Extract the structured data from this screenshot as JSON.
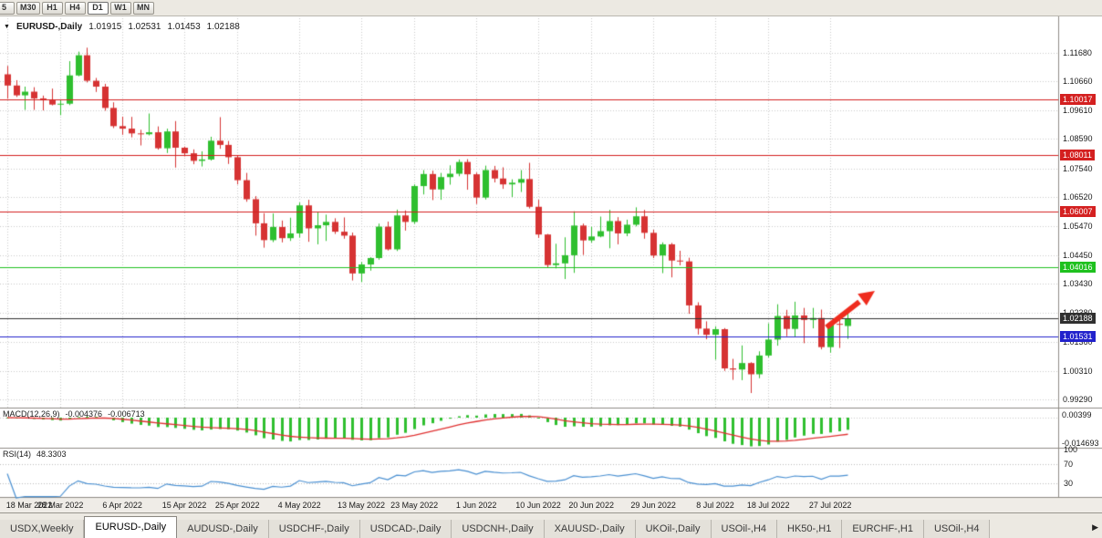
{
  "toolbar": {
    "timeframes": [
      {
        "label": "5",
        "active": false
      },
      {
        "label": "M30",
        "active": false
      },
      {
        "label": "H1",
        "active": false
      },
      {
        "label": "H4",
        "active": false
      },
      {
        "label": "D1",
        "active": true
      },
      {
        "label": "W1",
        "active": false
      },
      {
        "label": "MN",
        "active": false
      }
    ]
  },
  "header": {
    "dropdown": "▼",
    "symbol": "EURUSD-,Daily",
    "open": "1.01915",
    "high": "1.02531",
    "low": "1.01453",
    "close": "1.02188"
  },
  "chart_data": {
    "type": "candlestick",
    "title": "EURUSD-,Daily",
    "price_range": {
      "top": 1.13,
      "bottom": 0.99
    },
    "price_axis_labels": [
      "1.11680",
      "1.10660",
      "1.09610",
      "1.08590",
      "1.07540",
      "1.06520",
      "1.05470",
      "1.04450",
      "1.03430",
      "1.02380",
      "1.01360",
      "1.00310",
      "0.99290"
    ],
    "date_labels": [
      {
        "text": "18 Mar 2022",
        "bar": 0
      },
      {
        "text": "28 Mar 2022",
        "bar": 6
      },
      {
        "text": "6 Apr 2022",
        "bar": 13
      },
      {
        "text": "15 Apr 2022",
        "bar": 20
      },
      {
        "text": "25 Apr 2022",
        "bar": 26
      },
      {
        "text": "4 May 2022",
        "bar": 33
      },
      {
        "text": "13 May 2022",
        "bar": 40
      },
      {
        "text": "23 May 2022",
        "bar": 46
      },
      {
        "text": "1 Jun 2022",
        "bar": 53
      },
      {
        "text": "10 Jun 2022",
        "bar": 60
      },
      {
        "text": "20 Jun 2022",
        "bar": 66
      },
      {
        "text": "29 Jun 2022",
        "bar": 73
      },
      {
        "text": "8 Jul 2022",
        "bar": 80
      },
      {
        "text": "18 Jul 2022",
        "bar": 86
      },
      {
        "text": "27 Jul 2022",
        "bar": 93
      }
    ],
    "colors": {
      "up": "#2fbf2f",
      "down": "#d63333"
    },
    "candles": [
      [
        1.109,
        1.112,
        1.1003,
        1.105
      ],
      [
        1.105,
        1.1069,
        1.1009,
        1.1015
      ],
      [
        1.1015,
        1.1046,
        1.0963,
        1.1028
      ],
      [
        1.1028,
        1.1044,
        1.0963,
        1.1004
      ],
      [
        1.1004,
        1.1014,
        1.0961,
        1.0997
      ],
      [
        1.0997,
        1.1039,
        1.0979,
        1.0982
      ],
      [
        1.0982,
        1.0999,
        1.0944,
        1.0985
      ],
      [
        1.0985,
        1.1137,
        1.098,
        1.1086
      ],
      [
        1.1086,
        1.1171,
        1.1083,
        1.1158
      ],
      [
        1.1158,
        1.1185,
        1.1061,
        1.1067
      ],
      [
        1.1067,
        1.1077,
        1.1027,
        1.1046
      ],
      [
        1.1046,
        1.1056,
        1.096,
        1.097
      ],
      [
        1.097,
        1.099,
        1.0898,
        1.0905
      ],
      [
        1.0905,
        1.0939,
        1.0874,
        1.0896
      ],
      [
        1.0896,
        1.0938,
        1.0865,
        1.0879
      ],
      [
        1.0879,
        1.0892,
        1.0836,
        1.0876
      ],
      [
        1.0876,
        1.095,
        1.0872,
        1.0883
      ],
      [
        1.0883,
        1.0904,
        1.0821,
        1.0826
      ],
      [
        1.0826,
        1.0896,
        1.0809,
        1.0886
      ],
      [
        1.0886,
        1.0923,
        1.0757,
        1.0828
      ],
      [
        1.0828,
        1.0832,
        1.0797,
        1.0808
      ],
      [
        1.0808,
        1.0822,
        1.0769,
        1.0781
      ],
      [
        1.0781,
        1.0815,
        1.0761,
        1.0786
      ],
      [
        1.0786,
        1.0867,
        1.0782,
        1.0853
      ],
      [
        1.0853,
        1.0937,
        1.0824,
        1.0838
      ],
      [
        1.0838,
        1.0852,
        1.077,
        1.0794
      ],
      [
        1.0794,
        1.08,
        1.0697,
        1.0712
      ],
      [
        1.0712,
        1.0738,
        1.0635,
        1.0644
      ],
      [
        1.0644,
        1.0655,
        1.0514,
        1.0558
      ],
      [
        1.0558,
        1.0594,
        1.0471,
        1.0498
      ],
      [
        1.0498,
        1.0593,
        1.0491,
        1.0545
      ],
      [
        1.0545,
        1.0568,
        1.049,
        1.0505
      ],
      [
        1.0505,
        1.0578,
        1.0495,
        1.0522
      ],
      [
        1.0522,
        1.0632,
        1.0507,
        1.0622
      ],
      [
        1.0622,
        1.0642,
        1.0492,
        1.054
      ],
      [
        1.054,
        1.0599,
        1.0483,
        1.0551
      ],
      [
        1.0551,
        1.0589,
        1.0495,
        1.0563
      ],
      [
        1.0563,
        1.0576,
        1.052,
        1.0528
      ],
      [
        1.0528,
        1.0579,
        1.0503,
        1.0514
      ],
      [
        1.0514,
        1.0525,
        1.0354,
        1.0379
      ],
      [
        1.0379,
        1.042,
        1.0348,
        1.0411
      ],
      [
        1.0411,
        1.0437,
        1.0389,
        1.0434
      ],
      [
        1.0434,
        1.0557,
        1.0428,
        1.0546
      ],
      [
        1.0546,
        1.0564,
        1.0461,
        1.0465
      ],
      [
        1.0465,
        1.0607,
        1.0459,
        1.0586
      ],
      [
        1.0586,
        1.0604,
        1.0532,
        1.0563
      ],
      [
        1.0563,
        1.0697,
        1.0556,
        1.0691
      ],
      [
        1.0691,
        1.0748,
        1.0661,
        1.0734
      ],
      [
        1.0734,
        1.0746,
        1.0641,
        1.0679
      ],
      [
        1.0679,
        1.0738,
        1.0642,
        1.0723
      ],
      [
        1.0723,
        1.0765,
        1.0696,
        1.0735
      ],
      [
        1.0735,
        1.0786,
        1.0726,
        1.0777
      ],
      [
        1.0777,
        1.0787,
        1.0678,
        1.0733
      ],
      [
        1.0733,
        1.0739,
        1.0627,
        1.065
      ],
      [
        1.065,
        1.0764,
        1.0643,
        1.0748
      ],
      [
        1.0748,
        1.0763,
        1.0704,
        1.0718
      ],
      [
        1.0718,
        1.0758,
        1.0681,
        1.0697
      ],
      [
        1.0697,
        1.0715,
        1.0652,
        1.0703
      ],
      [
        1.0703,
        1.0748,
        1.067,
        1.0716
      ],
      [
        1.0716,
        1.0774,
        1.0611,
        1.0617
      ],
      [
        1.0617,
        1.0642,
        1.0506,
        1.0518
      ],
      [
        1.0518,
        1.052,
        1.0399,
        1.0409
      ],
      [
        1.0409,
        1.0485,
        1.0397,
        1.0415
      ],
      [
        1.0415,
        1.0508,
        1.0359,
        1.0444
      ],
      [
        1.0444,
        1.0601,
        1.0381,
        1.055
      ],
      [
        1.055,
        1.0557,
        1.0445,
        1.0497
      ],
      [
        1.0497,
        1.0546,
        1.0489,
        1.0511
      ],
      [
        1.0511,
        1.0582,
        1.0508,
        1.053
      ],
      [
        1.053,
        1.0606,
        1.0469,
        1.0566
      ],
      [
        1.0566,
        1.058,
        1.0483,
        1.0522
      ],
      [
        1.0522,
        1.0571,
        1.0512,
        1.0553
      ],
      [
        1.0553,
        1.0615,
        1.0547,
        1.0583
      ],
      [
        1.0583,
        1.0606,
        1.0503,
        1.0524
      ],
      [
        1.0524,
        1.0535,
        1.0434,
        1.0443
      ],
      [
        1.0443,
        1.049,
        1.038,
        1.0483
      ],
      [
        1.0483,
        1.0488,
        1.0365,
        1.0425
      ],
      [
        1.0425,
        1.046,
        1.0408,
        1.0422
      ],
      [
        1.0422,
        1.0435,
        1.0235,
        1.0265
      ],
      [
        1.0265,
        1.0276,
        1.0161,
        1.0182
      ],
      [
        1.0182,
        1.0208,
        1.0144,
        1.016
      ],
      [
        1.016,
        1.019,
        1.0071,
        1.018
      ],
      [
        1.018,
        1.0184,
        1.0031,
        1.004
      ],
      [
        1.004,
        1.0074,
        0.9999,
        1.0036
      ],
      [
        1.0036,
        1.0122,
        0.9998,
        1.0059
      ],
      [
        1.0059,
        1.0062,
        0.9952,
        1.0019
      ],
      [
        1.0019,
        1.0101,
        1.0005,
        1.0086
      ],
      [
        1.0086,
        1.0201,
        1.0079,
        1.0143
      ],
      [
        1.0143,
        1.0269,
        1.0121,
        1.0227
      ],
      [
        1.0227,
        1.0249,
        1.0155,
        1.0181
      ],
      [
        1.0181,
        1.0278,
        1.0153,
        1.0229
      ],
      [
        1.0229,
        1.0256,
        1.013,
        1.0213
      ],
      [
        1.0213,
        1.0256,
        1.0183,
        1.022
      ],
      [
        1.022,
        1.025,
        1.0108,
        1.0116
      ],
      [
        1.0116,
        1.0208,
        1.0096,
        1.0199
      ],
      [
        1.0199,
        1.023,
        1.0113,
        1.0196
      ],
      [
        1.01915,
        1.02531,
        1.01453,
        1.02188
      ]
    ]
  },
  "levels": [
    {
      "price": 1.10017,
      "label": "1.10017",
      "color": "#d42020"
    },
    {
      "price": 1.08011,
      "label": "1.08011",
      "color": "#d42020"
    },
    {
      "price": 1.06007,
      "label": "1.06007",
      "color": "#d42020"
    },
    {
      "price": 1.04016,
      "label": "1.04016",
      "color": "#1fc11f"
    },
    {
      "price": 1.02188,
      "label": "1.02188",
      "color": "#303030"
    },
    {
      "price": 1.01531,
      "label": "1.01531",
      "color": "#2222cc"
    }
  ],
  "indicators": {
    "macd": {
      "title": "MACD(12,26,9)",
      "value": "-0.004376",
      "signal_value": "-0.006713",
      "axis": [
        "0.00399",
        "-0.014693"
      ],
      "histogram_color": "#2fbf2f",
      "signal_color": "#e03131"
    },
    "rsi": {
      "title": "RSI(14)",
      "value": "48.3303",
      "axis": [
        "100",
        "70",
        "30"
      ],
      "levels": [
        70,
        30
      ],
      "line_color": "#4a90d2"
    }
  },
  "annotation": {
    "arrow_color": "#ef2c1e"
  },
  "tabs": {
    "scroll_icon": "▶",
    "items": [
      {
        "label": "USDX,Weekly",
        "active": false
      },
      {
        "label": "EURUSD-,Daily",
        "active": true
      },
      {
        "label": "AUDUSD-,Daily",
        "active": false
      },
      {
        "label": "USDCHF-,Daily",
        "active": false
      },
      {
        "label": "USDCAD-,Daily",
        "active": false
      },
      {
        "label": "USDCNH-,Daily",
        "active": false
      },
      {
        "label": "XAUUSD-,Daily",
        "active": false
      },
      {
        "label": "UKOil-,Daily",
        "active": false
      },
      {
        "label": "USOil-,H4",
        "active": false
      },
      {
        "label": "HK50-,H1",
        "active": false
      },
      {
        "label": "EURCHF-,H1",
        "active": false
      },
      {
        "label": "USOil-,H4",
        "active": false
      }
    ]
  }
}
